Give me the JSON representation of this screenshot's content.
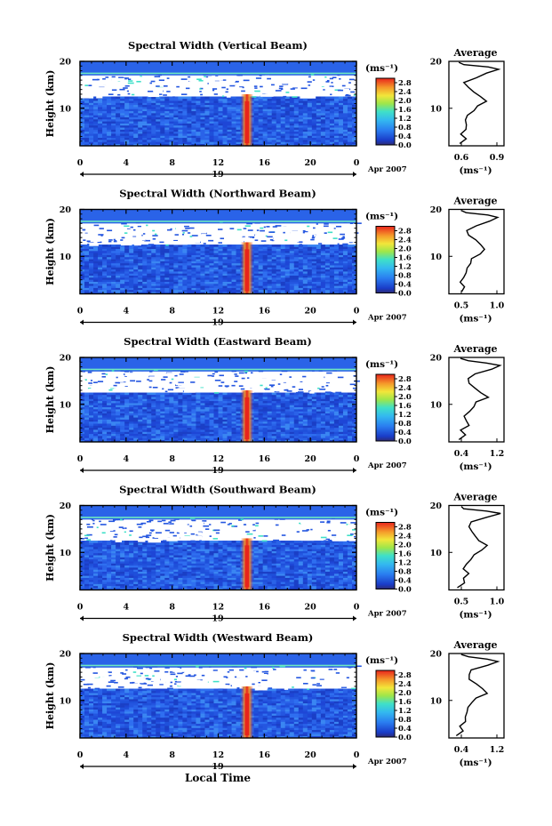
{
  "figure": {
    "xlabel": "Local Time"
  },
  "colorbar": {
    "unit": "(ms⁻¹)",
    "ticks": [
      "2.8",
      "2.4",
      "2.0",
      "1.6",
      "1.2",
      "0.8",
      "0.4",
      "0.0"
    ]
  },
  "chart_data": [
    {
      "type": "heatmap",
      "title": "Spectral Width (Vertical Beam)",
      "ylabel": "Height (km)",
      "xlim": [
        0,
        24
      ],
      "ylim": [
        2,
        20
      ],
      "x_ticks": [
        "0",
        "4",
        "8",
        "12",
        "16",
        "20",
        "0"
      ],
      "y_ticks": [
        "20",
        "10"
      ],
      "date_label": "19",
      "date_suffix": "Apr 2007",
      "colorbar_range": [
        0.0,
        3.0
      ],
      "profile": {
        "title": "Average",
        "x_ticks": [
          "0.6",
          "0.9"
        ],
        "xlabel": "(ms⁻¹)",
        "y_ticks": [
          "20",
          "10"
        ]
      }
    },
    {
      "type": "heatmap",
      "title": "Spectral Width (Northward Beam)",
      "ylabel": "Height (km)",
      "xlim": [
        0,
        24
      ],
      "ylim": [
        2,
        20
      ],
      "x_ticks": [
        "0",
        "4",
        "8",
        "12",
        "16",
        "20",
        "0"
      ],
      "y_ticks": [
        "20",
        "10"
      ],
      "date_label": "19",
      "date_suffix": "Apr 2007",
      "colorbar_range": [
        0.0,
        3.0
      ],
      "profile": {
        "title": "Average",
        "x_ticks": [
          "0.5",
          "1.0"
        ],
        "xlabel": "(ms⁻¹)",
        "y_ticks": [
          "20",
          "10"
        ]
      }
    },
    {
      "type": "heatmap",
      "title": "Spectral Width (Eastward Beam)",
      "ylabel": "Height (km)",
      "xlim": [
        0,
        24
      ],
      "ylim": [
        2,
        20
      ],
      "x_ticks": [
        "0",
        "4",
        "8",
        "12",
        "16",
        "20",
        "0"
      ],
      "y_ticks": [
        "20",
        "10"
      ],
      "date_label": "19",
      "date_suffix": "Apr 2007",
      "colorbar_range": [
        0.0,
        3.0
      ],
      "profile": {
        "title": "Average",
        "x_ticks": [
          "0.4",
          "1.2"
        ],
        "xlabel": "(ms⁻¹)",
        "y_ticks": [
          "20",
          "10"
        ]
      }
    },
    {
      "type": "heatmap",
      "title": "Spectral Width (Southward Beam)",
      "ylabel": "Height (km)",
      "xlim": [
        0,
        24
      ],
      "ylim": [
        2,
        20
      ],
      "x_ticks": [
        "0",
        "4",
        "8",
        "12",
        "16",
        "20",
        "0"
      ],
      "y_ticks": [
        "20",
        "10"
      ],
      "date_label": "19",
      "date_suffix": "Apr 2007",
      "colorbar_range": [
        0.0,
        3.0
      ],
      "profile": {
        "title": "Average",
        "x_ticks": [
          "0.5",
          "1.0"
        ],
        "xlabel": "(ms⁻¹)",
        "y_ticks": [
          "20",
          "10"
        ]
      }
    },
    {
      "type": "heatmap",
      "title": "Spectral Width (Westward Beam)",
      "ylabel": "Height (km)",
      "xlim": [
        0,
        24
      ],
      "ylim": [
        2,
        20
      ],
      "x_ticks": [
        "0",
        "4",
        "8",
        "12",
        "16",
        "20",
        "0"
      ],
      "y_ticks": [
        "20",
        "10"
      ],
      "date_label": "19",
      "date_suffix": "Apr 2007",
      "colorbar_range": [
        0.0,
        3.0
      ],
      "profile": {
        "title": "Average",
        "x_ticks": [
          "0.4",
          "1.2"
        ],
        "xlabel": "(ms⁻¹)",
        "y_ticks": [
          "20",
          "10"
        ]
      }
    }
  ]
}
